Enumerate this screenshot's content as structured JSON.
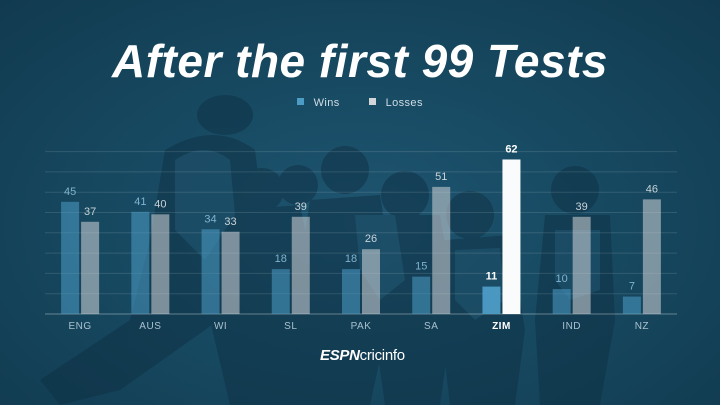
{
  "title": "After the first 99 Tests",
  "legend": {
    "wins_label": "Wins",
    "losses_label": "Losses",
    "wins_color": "#4d9cc6",
    "losses_color": "#d3d6d8"
  },
  "brand": {
    "espn": "ESPN",
    "cricinfo": "cricinfo"
  },
  "chart_data": {
    "type": "bar",
    "categories": [
      "ENG",
      "AUS",
      "WI",
      "SL",
      "PAK",
      "SA",
      "ZIM",
      "IND",
      "NZ"
    ],
    "series": [
      {
        "name": "Wins",
        "values": [
          45,
          41,
          34,
          18,
          18,
          15,
          11,
          10,
          7
        ]
      },
      {
        "name": "Losses",
        "values": [
          37,
          40,
          33,
          39,
          26,
          51,
          62,
          39,
          46
        ]
      }
    ],
    "highlight_category": "ZIM",
    "ylim": [
      0,
      65
    ],
    "grid": true,
    "legend_position": "top-center",
    "data_labels": true
  }
}
